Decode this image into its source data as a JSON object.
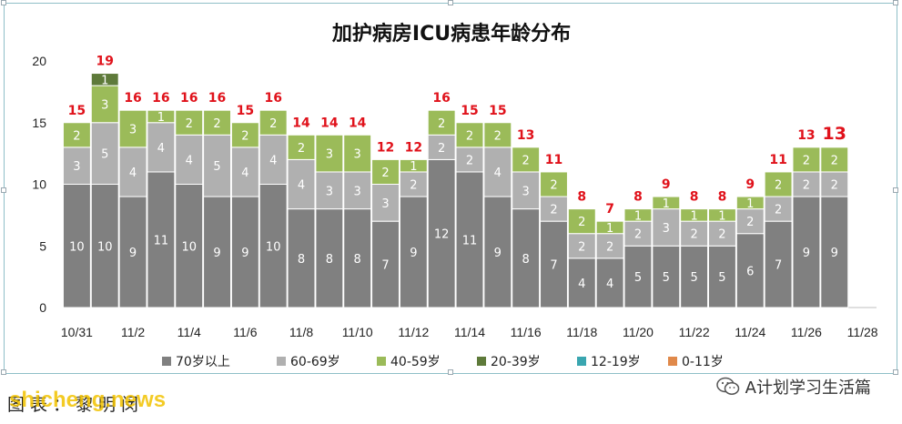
{
  "chart_data": {
    "type": "bar",
    "stacked": true,
    "title": "加护病房ICU病患年龄分布",
    "ylim": [
      0,
      20
    ],
    "yticks": [
      0,
      5,
      10,
      15,
      20
    ],
    "x_tick_labels": [
      "10/31",
      "11/2",
      "11/4",
      "11/6",
      "11/8",
      "11/10",
      "11/12",
      "11/14",
      "11/16",
      "11/18",
      "11/20",
      "11/22",
      "11/24",
      "11/26",
      "11/28"
    ],
    "categories": [
      "10/31",
      "11/1",
      "11/2",
      "11/3",
      "11/4",
      "11/5",
      "11/6",
      "11/7",
      "11/8",
      "11/9",
      "11/10",
      "11/11",
      "11/12",
      "11/13",
      "11/14",
      "11/15",
      "11/16",
      "11/17",
      "11/18",
      "11/19",
      "11/20",
      "11/21",
      "11/22",
      "11/23",
      "11/24",
      "11/25",
      "11/26",
      "11/27",
      "11/28"
    ],
    "series": [
      {
        "name": "70岁以上",
        "color": "#808080",
        "values": [
          10,
          10,
          9,
          11,
          10,
          9,
          9,
          10,
          8,
          8,
          8,
          7,
          9,
          12,
          11,
          9,
          8,
          7,
          4,
          4,
          5,
          5,
          5,
          5,
          6,
          7,
          9,
          9,
          0
        ]
      },
      {
        "name": "60-69岁",
        "color": "#b0b0b0",
        "values": [
          3,
          5,
          4,
          4,
          4,
          5,
          4,
          4,
          4,
          3,
          3,
          3,
          2,
          2,
          2,
          4,
          3,
          2,
          2,
          2,
          2,
          3,
          2,
          2,
          2,
          2,
          2,
          2,
          0
        ]
      },
      {
        "name": "40-59岁",
        "color": "#9bbb59",
        "values": [
          2,
          3,
          3,
          1,
          2,
          2,
          2,
          2,
          2,
          3,
          3,
          2,
          1,
          2,
          2,
          2,
          2,
          2,
          2,
          1,
          1,
          1,
          1,
          1,
          1,
          2,
          2,
          2,
          0
        ]
      },
      {
        "name": "20-39岁",
        "color": "#5e7a3a",
        "values": [
          0,
          1,
          0,
          0,
          0,
          0,
          0,
          0,
          0,
          0,
          0,
          0,
          0,
          0,
          0,
          0,
          0,
          0,
          0,
          0,
          0,
          0,
          0,
          0,
          0,
          0,
          0,
          0,
          0
        ]
      },
      {
        "name": "12-19岁",
        "color": "#3aa6b0",
        "values": [
          0,
          0,
          0,
          0,
          0,
          0,
          0,
          0,
          0,
          0,
          0,
          0,
          0,
          0,
          0,
          0,
          0,
          0,
          0,
          0,
          0,
          0,
          0,
          0,
          0,
          0,
          0,
          0,
          0
        ]
      },
      {
        "name": "0-11岁",
        "color": "#e0894a",
        "values": [
          0,
          0,
          0,
          0,
          0,
          0,
          0,
          0,
          0,
          0,
          0,
          0,
          0,
          0,
          0,
          0,
          0,
          0,
          0,
          0,
          0,
          0,
          0,
          0,
          0,
          0,
          0,
          0,
          0
        ]
      }
    ],
    "totals": [
      15,
      19,
      16,
      16,
      16,
      16,
      15,
      16,
      14,
      14,
      14,
      12,
      12,
      16,
      15,
      15,
      13,
      11,
      8,
      7,
      8,
      9,
      8,
      8,
      9,
      11,
      13,
      13,
      null
    ],
    "total_label_color": "#e0121b",
    "highlight_last_total": true,
    "legend_position": "bottom",
    "grid": false
  },
  "footer": {
    "caption": "图表：黎明闵",
    "overlay": "shicheng.news",
    "wechat_account": "A计划学习生活篇",
    "wechat_icon": "wechat-icon"
  }
}
